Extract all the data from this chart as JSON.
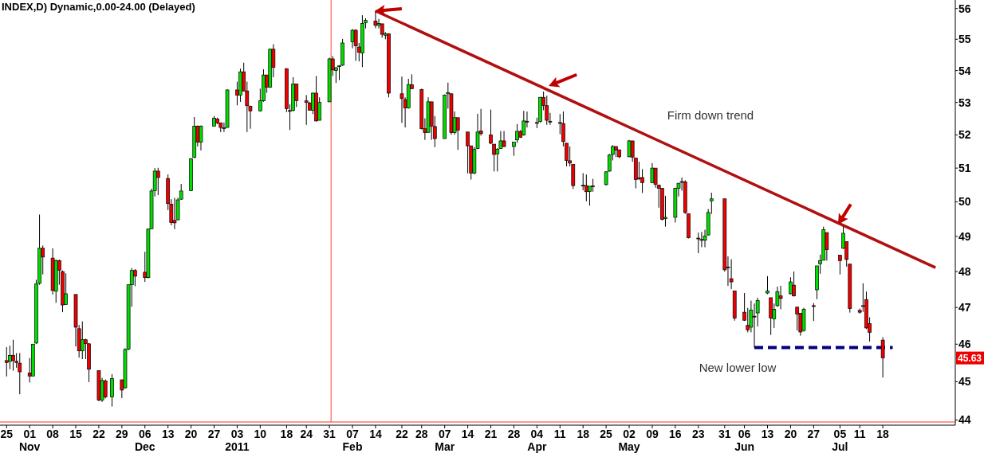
{
  "chart_data": {
    "type": "candlestick",
    "title": "INDEX,D) Dynamic,0.00-24.00 (Delayed)",
    "log": true,
    "ylim": [
      43.95,
      56.28
    ],
    "yticks": [
      44,
      45,
      46,
      47,
      48,
      49,
      50,
      51,
      52,
      53,
      54,
      55,
      56
    ],
    "xlim": [
      "2010-10-23",
      "2011-08-09"
    ],
    "xticks": [
      {
        "value": "2010-10-25",
        "label": "25"
      },
      {
        "value": "2010-11-01",
        "label": "01\nNov"
      },
      {
        "value": "2010-11-08",
        "label": "08"
      },
      {
        "value": "2010-11-15",
        "label": "15"
      },
      {
        "value": "2010-11-22",
        "label": "22"
      },
      {
        "value": "2010-11-29",
        "label": "29"
      },
      {
        "value": "2010-12-06",
        "label": "06\nDec"
      },
      {
        "value": "2010-12-13",
        "label": "13"
      },
      {
        "value": "2010-12-20",
        "label": "20"
      },
      {
        "value": "2010-12-27",
        "label": "27"
      },
      {
        "value": "2011-01-03",
        "label": "03\n2011"
      },
      {
        "value": "2011-01-10",
        "label": "10"
      },
      {
        "value": "2011-01-18",
        "label": "18"
      },
      {
        "value": "2011-01-24",
        "label": "24"
      },
      {
        "value": "2011-01-31",
        "label": "31"
      },
      {
        "value": "2011-02-07",
        "label": "07\nFeb"
      },
      {
        "value": "2011-02-14",
        "label": "14"
      },
      {
        "value": "2011-02-22",
        "label": "22"
      },
      {
        "value": "2011-02-28",
        "label": "28"
      },
      {
        "value": "2011-03-07",
        "label": "07\nMar"
      },
      {
        "value": "2011-03-14",
        "label": "14"
      },
      {
        "value": "2011-03-21",
        "label": "21"
      },
      {
        "value": "2011-03-28",
        "label": "28"
      },
      {
        "value": "2011-04-04",
        "label": "04\nApr"
      },
      {
        "value": "2011-04-11",
        "label": "11"
      },
      {
        "value": "2011-04-18",
        "label": "18"
      },
      {
        "value": "2011-04-25",
        "label": "25"
      },
      {
        "value": "2011-05-02",
        "label": "02\nMay"
      },
      {
        "value": "2011-05-09",
        "label": "09"
      },
      {
        "value": "2011-05-16",
        "label": "16"
      },
      {
        "value": "2011-05-23",
        "label": "23"
      },
      {
        "value": "2011-05-31",
        "label": "31"
      },
      {
        "value": "2011-06-06",
        "label": "06\nJun"
      },
      {
        "value": "2011-06-13",
        "label": "13"
      },
      {
        "value": "2011-06-20",
        "label": "20"
      },
      {
        "value": "2011-06-27",
        "label": "27"
      },
      {
        "value": "2011-07-05",
        "label": "05\nJul"
      },
      {
        "value": "2011-07-11",
        "label": "11"
      },
      {
        "value": "2011-07-18",
        "label": "18"
      }
    ],
    "ref_lines": [
      {
        "axis": "x",
        "value": "2011-01-31T12:00",
        "color": "#ff4040"
      }
    ],
    "annotations": [
      "Firm down trend",
      "New lower low",
      "45.63"
    ],
    "series": [
      {
        "colors": [
          "#ee0000",
          "#00dd00",
          "#ee0000",
          "#ee0000",
          "#ee0000",
          "#ee0000",
          "#00dd00",
          "#00dd00",
          "#00dd00",
          "#ee0000",
          "#ee0000",
          "#00dd00",
          "#ee0000",
          "#ee0000",
          "#00dd00",
          "#ee0000",
          "#ee0000",
          "#00dd00",
          "#ee0000",
          "#ee0000",
          "#ee0000",
          "#00dd00",
          "#ee0000",
          "#00dd00",
          "#ee0000",
          "#00dd00",
          "#00dd00",
          "#00dd00",
          "#ee0000",
          "#ee0000",
          "#00dd00",
          "#00dd00",
          "#00dd00",
          "#ee0000",
          "#ee0000",
          "#ee0000",
          "#ee0000",
          "#00dd00",
          "#00dd00",
          "#00dd00",
          "#00dd00",
          "#ee0000",
          "#00dd00",
          "#00dd00",
          "#ee0000",
          "#ee0000",
          "#ee0000",
          "#00dd00",
          "#ee0000",
          "#00dd00",
          "#ee0000",
          "#ee0000",
          "#ee0000",
          "#00dd00",
          "#00dd00",
          "#ee0000",
          "#00dd00",
          "#ee0000",
          "#ee0000",
          "#ee0000",
          "#00dd00",
          "#ee0000",
          "#ee0000",
          "#ee0000",
          "#00dd00",
          "#ee0000",
          "#00dd00",
          "#00dd00",
          "#ee0000",
          "#00dd00",
          "#00dd00",
          "#00dd00",
          "#00dd00",
          "#ee0000",
          "#ee0000",
          "#00dd00",
          "#00dd00",
          "#ee0000",
          "#00dd00",
          "#ee0000",
          "#00dd00",
          "#ee0000",
          "#ee0000",
          "#ee0000",
          "#00dd00",
          "#ee0000",
          "#ee0000",
          "#ee0000",
          "#00dd00",
          "#ee0000",
          "#ee0000",
          "#00dd00",
          "#00dd00",
          "#ee0000",
          "#00dd00",
          "#ee0000",
          "#ee0000",
          "#ee0000",
          "#00dd00",
          "#00dd00",
          "#ee0000",
          "#ee0000",
          "#ee0000",
          "#00dd00",
          "#00dd00",
          "#ee0000",
          "#00dd00",
          "#00dd00",
          "#ee0000",
          "#00dd00",
          "#ee0000",
          "#ee0000",
          "#00dd00",
          "#ee0000",
          "#ee0000",
          "#ee0000",
          "#ee0000",
          "#ee0000",
          "#ee0000",
          "#ee0000",
          "#ee0000",
          "#ee0000",
          "#ee0000",
          "#00dd00",
          "#ee0000",
          "#00dd00",
          "#00dd00",
          "#00dd00",
          "#ee0000",
          "#ee0000",
          "#00dd00",
          "#ee0000",
          "#ee0000",
          "#ee0000",
          "#ee0000",
          "#00dd00",
          "#ee0000",
          "#ee0000",
          "#ee0000",
          "#00dd00",
          "#00dd00",
          "#00dd00",
          "#ee0000",
          "#ee0000",
          "#ee0000",
          "#ee0000",
          "#ee0000",
          "#00dd00",
          "#00dd00",
          "#00dd00",
          "#ee0000",
          "#ee0000",
          "#ee0000",
          "#ee0000",
          "#ee0000",
          "#ee0000",
          "#00dd00",
          "#ee0000",
          "#00dd00",
          "#00dd00",
          "#ee0000",
          "#00dd00",
          "#00dd00",
          "#ee0000",
          "#00dd00",
          "#ee0000",
          "#ee0000",
          "#ee0000",
          "#00dd00",
          "#ee0000",
          "#00dd00",
          "#00dd00",
          "#00dd00",
          "#ee0000",
          "#ee0000",
          "#00dd00",
          "#ee0000",
          "#ee0000",
          "#ee0000",
          "#ee0000",
          "#ee0000",
          "#ee0000",
          "#ee0000"
        ],
        "x": [
          "2010-10-25",
          "2010-10-26",
          "2010-10-27",
          "2010-10-28",
          "2010-10-29",
          "2010-11-01",
          "2010-11-02",
          "2010-11-03",
          "2010-11-04",
          "2010-11-05",
          "2010-11-08",
          "2010-11-09",
          "2010-11-10",
          "2010-11-11",
          "2010-11-12",
          "2010-11-15",
          "2010-11-16",
          "2010-11-17",
          "2010-11-18",
          "2010-11-19",
          "2010-11-22",
          "2010-11-23",
          "2010-11-24",
          "2010-11-26",
          "2010-11-29",
          "2010-11-30",
          "2010-12-01",
          "2010-12-02",
          "2010-12-03",
          "2010-12-06",
          "2010-12-07",
          "2010-12-08",
          "2010-12-09",
          "2010-12-10",
          "2010-12-13",
          "2010-12-14",
          "2010-12-15",
          "2010-12-16",
          "2010-12-17",
          "2010-12-20",
          "2010-12-21",
          "2010-12-22",
          "2010-12-23",
          "2010-12-27",
          "2010-12-28",
          "2010-12-29",
          "2010-12-30",
          "2010-12-31",
          "2011-01-03",
          "2011-01-04",
          "2011-01-05",
          "2011-01-06",
          "2011-01-07",
          "2011-01-10",
          "2011-01-11",
          "2011-01-12",
          "2011-01-13",
          "2011-01-14",
          "2011-01-18",
          "2011-01-19",
          "2011-01-20",
          "2011-01-21",
          "2011-01-24",
          "2011-01-25",
          "2011-01-26",
          "2011-01-27",
          "2011-01-28",
          "2011-01-31",
          "2011-02-01",
          "2011-02-02",
          "2011-02-03",
          "2011-02-04",
          "2011-02-07",
          "2011-02-08",
          "2011-02-09",
          "2011-02-10",
          "2011-02-11",
          "2011-02-14",
          "2011-02-15",
          "2011-02-16",
          "2011-02-17",
          "2011-02-18",
          "2011-02-22",
          "2011-02-23",
          "2011-02-24",
          "2011-02-25",
          "2011-02-28",
          "2011-03-01",
          "2011-03-02",
          "2011-03-03",
          "2011-03-04",
          "2011-03-07",
          "2011-03-08",
          "2011-03-09",
          "2011-03-10",
          "2011-03-11",
          "2011-03-14",
          "2011-03-15",
          "2011-03-16",
          "2011-03-17",
          "2011-03-18",
          "2011-03-21",
          "2011-03-22",
          "2011-03-23",
          "2011-03-24",
          "2011-03-25",
          "2011-03-28",
          "2011-03-29",
          "2011-03-30",
          "2011-03-31",
          "2011-04-01",
          "2011-04-04",
          "2011-04-05",
          "2011-04-06",
          "2011-04-07",
          "2011-04-08",
          "2011-04-11",
          "2011-04-12",
          "2011-04-13",
          "2011-04-14",
          "2011-04-15",
          "2011-04-18",
          "2011-04-19",
          "2011-04-20",
          "2011-04-21",
          "2011-04-25",
          "2011-04-26",
          "2011-04-27",
          "2011-04-28",
          "2011-04-29",
          "2011-05-02",
          "2011-05-03",
          "2011-05-04",
          "2011-05-05",
          "2011-05-06",
          "2011-05-09",
          "2011-05-10",
          "2011-05-11",
          "2011-05-12",
          "2011-05-13",
          "2011-05-16",
          "2011-05-17",
          "2011-05-18",
          "2011-05-19",
          "2011-05-20",
          "2011-05-23",
          "2011-05-24",
          "2011-05-25",
          "2011-05-26",
          "2011-05-27",
          "2011-05-31",
          "2011-06-01",
          "2011-06-02",
          "2011-06-03",
          "2011-06-06",
          "2011-06-07",
          "2011-06-08",
          "2011-06-09",
          "2011-06-10",
          "2011-06-13",
          "2011-06-14",
          "2011-06-15",
          "2011-06-16",
          "2011-06-17",
          "2011-06-20",
          "2011-06-21",
          "2011-06-22",
          "2011-06-23",
          "2011-06-24",
          "2011-06-27",
          "2011-06-28",
          "2011-06-29",
          "2011-06-30",
          "2011-07-01",
          "2011-07-05",
          "2011-07-06",
          "2011-07-07",
          "2011-07-08",
          "2011-07-11",
          "2011-07-12",
          "2011-07-13",
          "2011-07-14",
          "2011-07-18"
        ],
        "ohlc": [
          [
            45.56,
            45.92,
            45.14,
            45.51
          ],
          [
            45.54,
            45.96,
            45.33,
            45.7
          ],
          [
            45.7,
            46.12,
            45.29,
            45.56
          ],
          [
            45.54,
            45.76,
            45.37,
            45.51
          ],
          [
            45.49,
            45.76,
            44.67,
            45.26
          ],
          [
            45.23,
            45.63,
            44.98,
            45.15
          ],
          [
            45.15,
            46.0,
            45.15,
            46.0
          ],
          [
            46.03,
            47.77,
            46.01,
            47.65
          ],
          [
            47.67,
            49.63,
            47.63,
            48.66
          ],
          [
            48.66,
            48.74,
            47.92,
            48.41
          ],
          [
            48.38,
            48.66,
            47.36,
            47.47
          ],
          [
            47.45,
            48.34,
            47.13,
            48.31
          ],
          [
            48.31,
            48.34,
            47.63,
            48.04
          ],
          [
            48.0,
            48.03,
            46.87,
            47.07
          ],
          [
            47.08,
            47.95,
            47.07,
            47.38
          ],
          [
            47.36,
            47.36,
            45.94,
            46.46
          ],
          [
            46.42,
            46.52,
            45.64,
            45.82
          ],
          [
            45.82,
            46.62,
            45.6,
            46.12
          ],
          [
            46.12,
            46.15,
            45.6,
            46.02
          ],
          [
            46.01,
            46.03,
            44.99,
            45.33
          ],
          [
            45.29,
            45.29,
            44.49,
            44.52
          ],
          [
            44.52,
            45.1,
            44.47,
            45.03
          ],
          [
            45.02,
            45.06,
            44.56,
            44.6
          ],
          [
            44.6,
            45.2,
            44.35,
            45.08
          ],
          [
            45.05,
            45.05,
            44.57,
            44.78
          ],
          [
            44.84,
            45.89,
            44.82,
            45.86
          ],
          [
            45.87,
            47.63,
            45.84,
            47.63
          ],
          [
            47.63,
            48.1,
            47.02,
            48.03
          ],
          [
            48.03,
            48.07,
            47.59,
            47.87
          ],
          [
            47.98,
            48.56,
            47.71,
            47.83
          ],
          [
            47.83,
            49.23,
            47.81,
            49.21
          ],
          [
            49.22,
            50.39,
            49.21,
            50.32
          ],
          [
            50.33,
            51.0,
            50.16,
            50.91
          ],
          [
            50.91,
            51.01,
            50.2,
            50.72
          ],
          [
            50.69,
            50.81,
            49.76,
            49.95
          ],
          [
            49.93,
            50.08,
            49.32,
            49.4
          ],
          [
            49.46,
            50.12,
            49.21,
            49.39
          ],
          [
            49.48,
            50.12,
            49.46,
            50.06
          ],
          [
            50.08,
            50.53,
            50.06,
            50.32
          ],
          [
            50.33,
            51.3,
            50.32,
            51.28
          ],
          [
            51.32,
            52.55,
            51.3,
            52.27
          ],
          [
            52.27,
            52.29,
            51.65,
            51.78
          ],
          [
            51.78,
            52.29,
            51.53,
            52.27
          ],
          [
            52.27,
            52.58,
            52.26,
            52.51
          ],
          [
            52.49,
            52.53,
            52.33,
            52.37
          ],
          [
            52.37,
            52.38,
            52.09,
            52.23
          ],
          [
            52.22,
            52.38,
            52.09,
            52.21
          ],
          [
            52.23,
            53.41,
            52.23,
            53.39
          ],
          [
            53.39,
            53.65,
            52.91,
            53.23
          ],
          [
            53.23,
            54.06,
            53.02,
            53.96
          ],
          [
            53.96,
            54.25,
            53.34,
            53.36
          ],
          [
            53.36,
            53.65,
            52.09,
            52.9
          ],
          [
            52.88,
            52.9,
            52.19,
            52.74
          ],
          [
            52.74,
            53.43,
            52.72,
            53.05
          ],
          [
            53.05,
            54.04,
            53.02,
            53.86
          ],
          [
            53.86,
            53.87,
            53.3,
            53.48
          ],
          [
            53.48,
            54.7,
            53.45,
            54.68
          ],
          [
            54.68,
            54.84,
            53.79,
            54.1
          ],
          [
            54.06,
            54.07,
            52.7,
            52.81
          ],
          [
            52.75,
            52.94,
            52.15,
            52.74
          ],
          [
            52.76,
            53.79,
            52.72,
            53.58
          ],
          [
            53.58,
            53.58,
            52.86,
            53.06
          ],
          [
            53.05,
            53.23,
            52.31,
            53.0
          ],
          [
            52.98,
            53.02,
            52.76,
            52.76
          ],
          [
            52.76,
            53.31,
            52.64,
            53.29
          ],
          [
            53.29,
            53.83,
            52.41,
            52.43
          ],
          [
            52.45,
            53.16,
            52.45,
            53.0
          ],
          [
            53.02,
            54.41,
            53.02,
            54.37
          ],
          [
            54.37,
            54.46,
            53.83,
            54.02
          ],
          [
            54.0,
            54.11,
            53.61,
            54.09
          ],
          [
            54.14,
            54.17,
            53.7,
            54.15
          ],
          [
            54.17,
            55.01,
            54.15,
            54.88
          ],
          [
            54.92,
            55.33,
            54.71,
            55.29
          ],
          [
            55.29,
            55.33,
            54.31,
            54.79
          ],
          [
            54.75,
            54.88,
            54.29,
            54.58
          ],
          [
            54.56,
            55.78,
            54.11,
            55.51
          ],
          [
            55.54,
            55.68,
            55.35,
            55.61
          ],
          [
            55.59,
            55.92,
            55.36,
            55.45
          ],
          [
            55.45,
            55.66,
            55.35,
            55.51
          ],
          [
            55.5,
            55.5,
            55.05,
            55.16
          ],
          [
            55.13,
            55.23,
            55.0,
            55.18
          ],
          [
            55.18,
            55.18,
            53.16,
            53.29
          ],
          [
            53.27,
            53.81,
            52.37,
            53.12
          ],
          [
            53.09,
            53.16,
            52.23,
            52.83
          ],
          [
            52.83,
            53.74,
            52.81,
            53.56
          ],
          [
            53.55,
            53.88,
            53.43,
            53.43
          ],
          [
            53.4,
            53.43,
            52.17,
            52.19
          ],
          [
            52.19,
            52.51,
            51.85,
            52.07
          ],
          [
            52.08,
            53.16,
            52.07,
            53.02
          ],
          [
            53.02,
            53.02,
            51.85,
            52.27
          ],
          [
            52.26,
            52.58,
            51.63,
            51.89
          ],
          [
            51.89,
            53.25,
            51.89,
            53.23
          ],
          [
            53.27,
            53.62,
            52.81,
            53.31
          ],
          [
            53.27,
            53.28,
            52.01,
            52.07
          ],
          [
            52.07,
            52.72,
            52.01,
            52.53
          ],
          [
            52.53,
            52.53,
            51.55,
            52.15
          ],
          [
            52.09,
            52.09,
            50.84,
            51.67
          ],
          [
            51.67,
            51.67,
            50.66,
            50.85
          ],
          [
            50.85,
            51.63,
            50.82,
            51.56
          ],
          [
            51.59,
            52.65,
            51.57,
            52.09
          ],
          [
            52.12,
            52.8,
            51.98,
            52.04
          ],
          [
            52.0,
            52.78,
            51.72,
            51.75
          ],
          [
            51.72,
            51.72,
            50.9,
            51.41
          ],
          [
            51.43,
            51.6,
            50.9,
            51.57
          ],
          [
            51.59,
            52.12,
            51.59,
            51.82
          ],
          [
            51.82,
            52.12,
            51.63,
            51.65
          ],
          [
            51.65,
            51.78,
            51.37,
            51.78
          ],
          [
            51.85,
            52.33,
            51.76,
            52.11
          ],
          [
            52.11,
            52.15,
            51.91,
            51.93
          ],
          [
            52.0,
            52.74,
            51.98,
            52.43
          ],
          [
            52.42,
            52.72,
            52.23,
            52.41
          ],
          [
            52.38,
            52.53,
            52.21,
            52.37
          ],
          [
            52.41,
            53.17,
            52.38,
            53.16
          ],
          [
            53.16,
            53.34,
            52.76,
            52.91
          ],
          [
            52.9,
            53.21,
            52.31,
            52.45
          ],
          [
            52.42,
            52.68,
            52.31,
            52.41
          ],
          [
            52.38,
            52.64,
            52.02,
            52.37
          ],
          [
            52.35,
            52.72,
            51.65,
            51.8
          ],
          [
            51.75,
            51.75,
            51.05,
            51.23
          ],
          [
            51.22,
            51.65,
            51.05,
            51.15
          ],
          [
            51.11,
            51.11,
            50.38,
            50.48
          ],
          [
            50.49,
            50.85,
            50.34,
            50.48
          ],
          [
            50.48,
            50.81,
            50.02,
            50.3
          ],
          [
            50.31,
            50.46,
            49.89,
            50.46
          ],
          [
            50.47,
            50.68,
            50.3,
            50.46
          ],
          [
            50.51,
            50.91,
            50.48,
            50.89
          ],
          [
            50.91,
            51.43,
            50.89,
            51.39
          ],
          [
            51.41,
            51.69,
            51.23,
            51.65
          ],
          [
            51.65,
            51.65,
            51.33,
            51.54
          ],
          [
            51.55,
            51.55,
            51.3,
            51.34
          ],
          [
            51.34,
            51.85,
            51.33,
            51.82
          ],
          [
            51.82,
            51.82,
            51.19,
            51.33
          ],
          [
            51.3,
            51.3,
            50.4,
            50.66
          ],
          [
            50.71,
            51.19,
            50.64,
            50.7
          ],
          [
            50.72,
            50.97,
            50.26,
            50.57
          ],
          [
            50.57,
            51.15,
            50.55,
            51.0
          ],
          [
            51.0,
            51.0,
            50.42,
            50.52
          ],
          [
            50.49,
            50.51,
            49.83,
            50.4
          ],
          [
            50.4,
            50.4,
            49.46,
            49.49
          ],
          [
            49.51,
            50.18,
            49.28,
            49.55
          ],
          [
            49.55,
            50.42,
            49.4,
            50.4
          ],
          [
            50.4,
            50.55,
            50.16,
            50.55
          ],
          [
            50.6,
            50.72,
            50.33,
            50.59
          ],
          [
            50.59,
            50.64,
            49.65,
            49.69
          ],
          [
            49.65,
            49.65,
            48.94,
            48.96
          ],
          [
            48.95,
            49.11,
            48.52,
            48.94
          ],
          [
            48.91,
            49.13,
            48.69,
            48.9
          ],
          [
            48.89,
            49.19,
            48.69,
            49.01
          ],
          [
            49.04,
            49.79,
            49.03,
            49.69
          ],
          [
            50.03,
            50.27,
            49.65,
            50.09
          ],
          [
            50.09,
            50.09,
            48.0,
            48.05
          ],
          [
            48.13,
            48.43,
            47.6,
            48.12
          ],
          [
            47.8,
            48.35,
            47.51,
            47.71
          ],
          [
            47.46,
            47.46,
            46.64,
            46.71
          ],
          [
            46.87,
            47.4,
            46.63,
            46.65
          ],
          [
            46.51,
            46.99,
            46.32,
            46.39
          ],
          [
            46.46,
            47.19,
            46.32,
            46.93
          ],
          [
            46.76,
            47.11,
            45.91,
            46.75
          ],
          [
            46.85,
            47.27,
            46.48,
            47.19
          ],
          [
            47.4,
            47.87,
            47.37,
            47.46
          ],
          [
            47.27,
            47.27,
            46.25,
            46.71
          ],
          [
            46.69,
            47.11,
            46.44,
            46.95
          ],
          [
            47.05,
            47.58,
            47.02,
            47.44
          ],
          [
            47.32,
            47.6,
            46.95,
            47.25
          ],
          [
            47.38,
            47.84,
            47.36,
            47.71
          ],
          [
            47.62,
            48.0,
            47.3,
            47.32
          ],
          [
            47.01,
            47.01,
            46.37,
            46.82
          ],
          [
            46.84,
            46.84,
            46.23,
            46.33
          ],
          [
            46.37,
            46.99,
            46.34,
            46.95
          ],
          [
            47.05,
            47.12,
            46.63,
            47.04
          ],
          [
            47.49,
            48.16,
            47.23,
            48.16
          ],
          [
            48.22,
            48.48,
            47.94,
            48.31
          ],
          [
            48.32,
            49.28,
            48.32,
            49.19
          ],
          [
            49.11,
            49.11,
            48.31,
            48.62
          ],
          [
            48.46,
            48.46,
            47.92,
            48.31
          ],
          [
            48.66,
            49.28,
            48.64,
            49.09
          ],
          [
            48.85,
            48.85,
            48.14,
            48.34
          ],
          [
            48.21,
            48.21,
            46.86,
            46.97
          ],
          [
            46.92,
            46.97,
            46.83,
            46.87
          ],
          [
            47.05,
            47.67,
            46.88,
            47.04
          ],
          [
            47.22,
            47.44,
            46.41,
            46.44
          ],
          [
            46.56,
            46.73,
            46.07,
            46.32
          ],
          [
            46.11,
            46.19,
            45.11,
            45.63
          ]
        ]
      },
      {
        "type": "line",
        "color": "#b01010",
        "x": [
          "2011-02-14",
          "2011-08-03"
        ],
        "values": [
          55.92,
          48.11
        ]
      },
      {
        "type": "line",
        "color": "#000080",
        "line_style": "dashed",
        "x": [
          "2011-06-09",
          "2011-07-21"
        ],
        "values": [
          45.91,
          45.91
        ]
      }
    ]
  }
}
